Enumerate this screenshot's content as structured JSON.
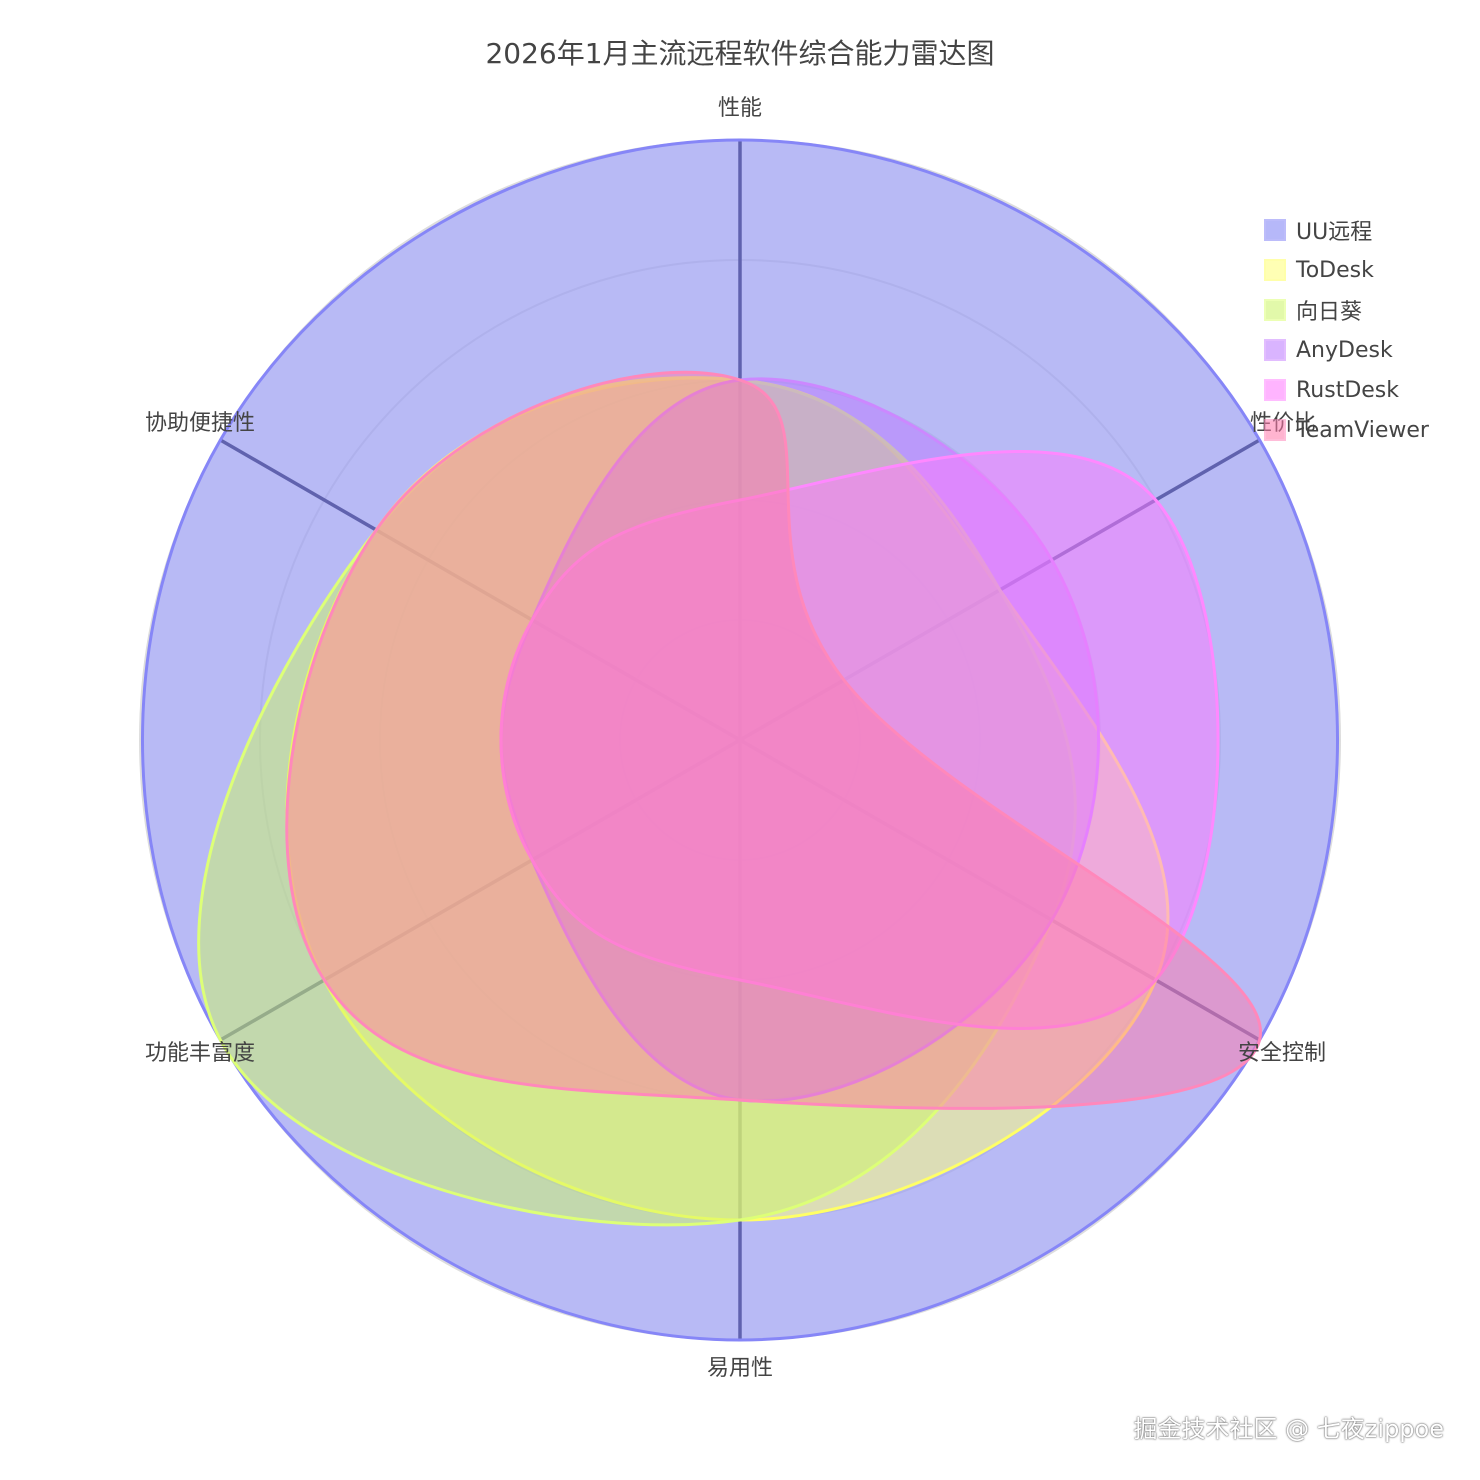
{
  "chart_data": {
    "type": "radar",
    "title": "2026年1月主流远程软件综合能力雷达图",
    "axes": [
      "性能",
      "性价比",
      "安全控制",
      "易用性",
      "功能丰富度",
      "协助便捷性"
    ],
    "range": [
      0,
      10
    ],
    "grid": true,
    "legend_position": "top-right",
    "line_shape": "spline",
    "series": [
      {
        "name": "UU远程",
        "values": [
          10,
          10,
          10,
          10,
          10,
          10
        ],
        "color": "#7b7ff5",
        "line": "#8686f7"
      },
      {
        "name": "ToDesk",
        "values": [
          6,
          5,
          8,
          8,
          8,
          7
        ],
        "color": "#ffff77",
        "line": "#ffff66"
      },
      {
        "name": "向日葵",
        "values": [
          6,
          5,
          6,
          8,
          10,
          7
        ],
        "color": "#ccf566",
        "line": "#ddff77"
      },
      {
        "name": "AnyDesk",
        "values": [
          6,
          6,
          6,
          6,
          4,
          4
        ],
        "color": "#bb77ff",
        "line": "#cc88ff"
      },
      {
        "name": "RustDesk",
        "values": [
          4,
          8,
          8,
          4,
          4,
          4
        ],
        "color": "#ff77ff",
        "line": "#ff88ff"
      },
      {
        "name": "TeamViewer",
        "values": [
          6,
          2,
          10,
          6,
          8,
          7
        ],
        "color": "#ff77aa",
        "line": "#ff88bb"
      }
    ]
  },
  "watermark": "掘金技术社区 @ 七夜zippoe"
}
